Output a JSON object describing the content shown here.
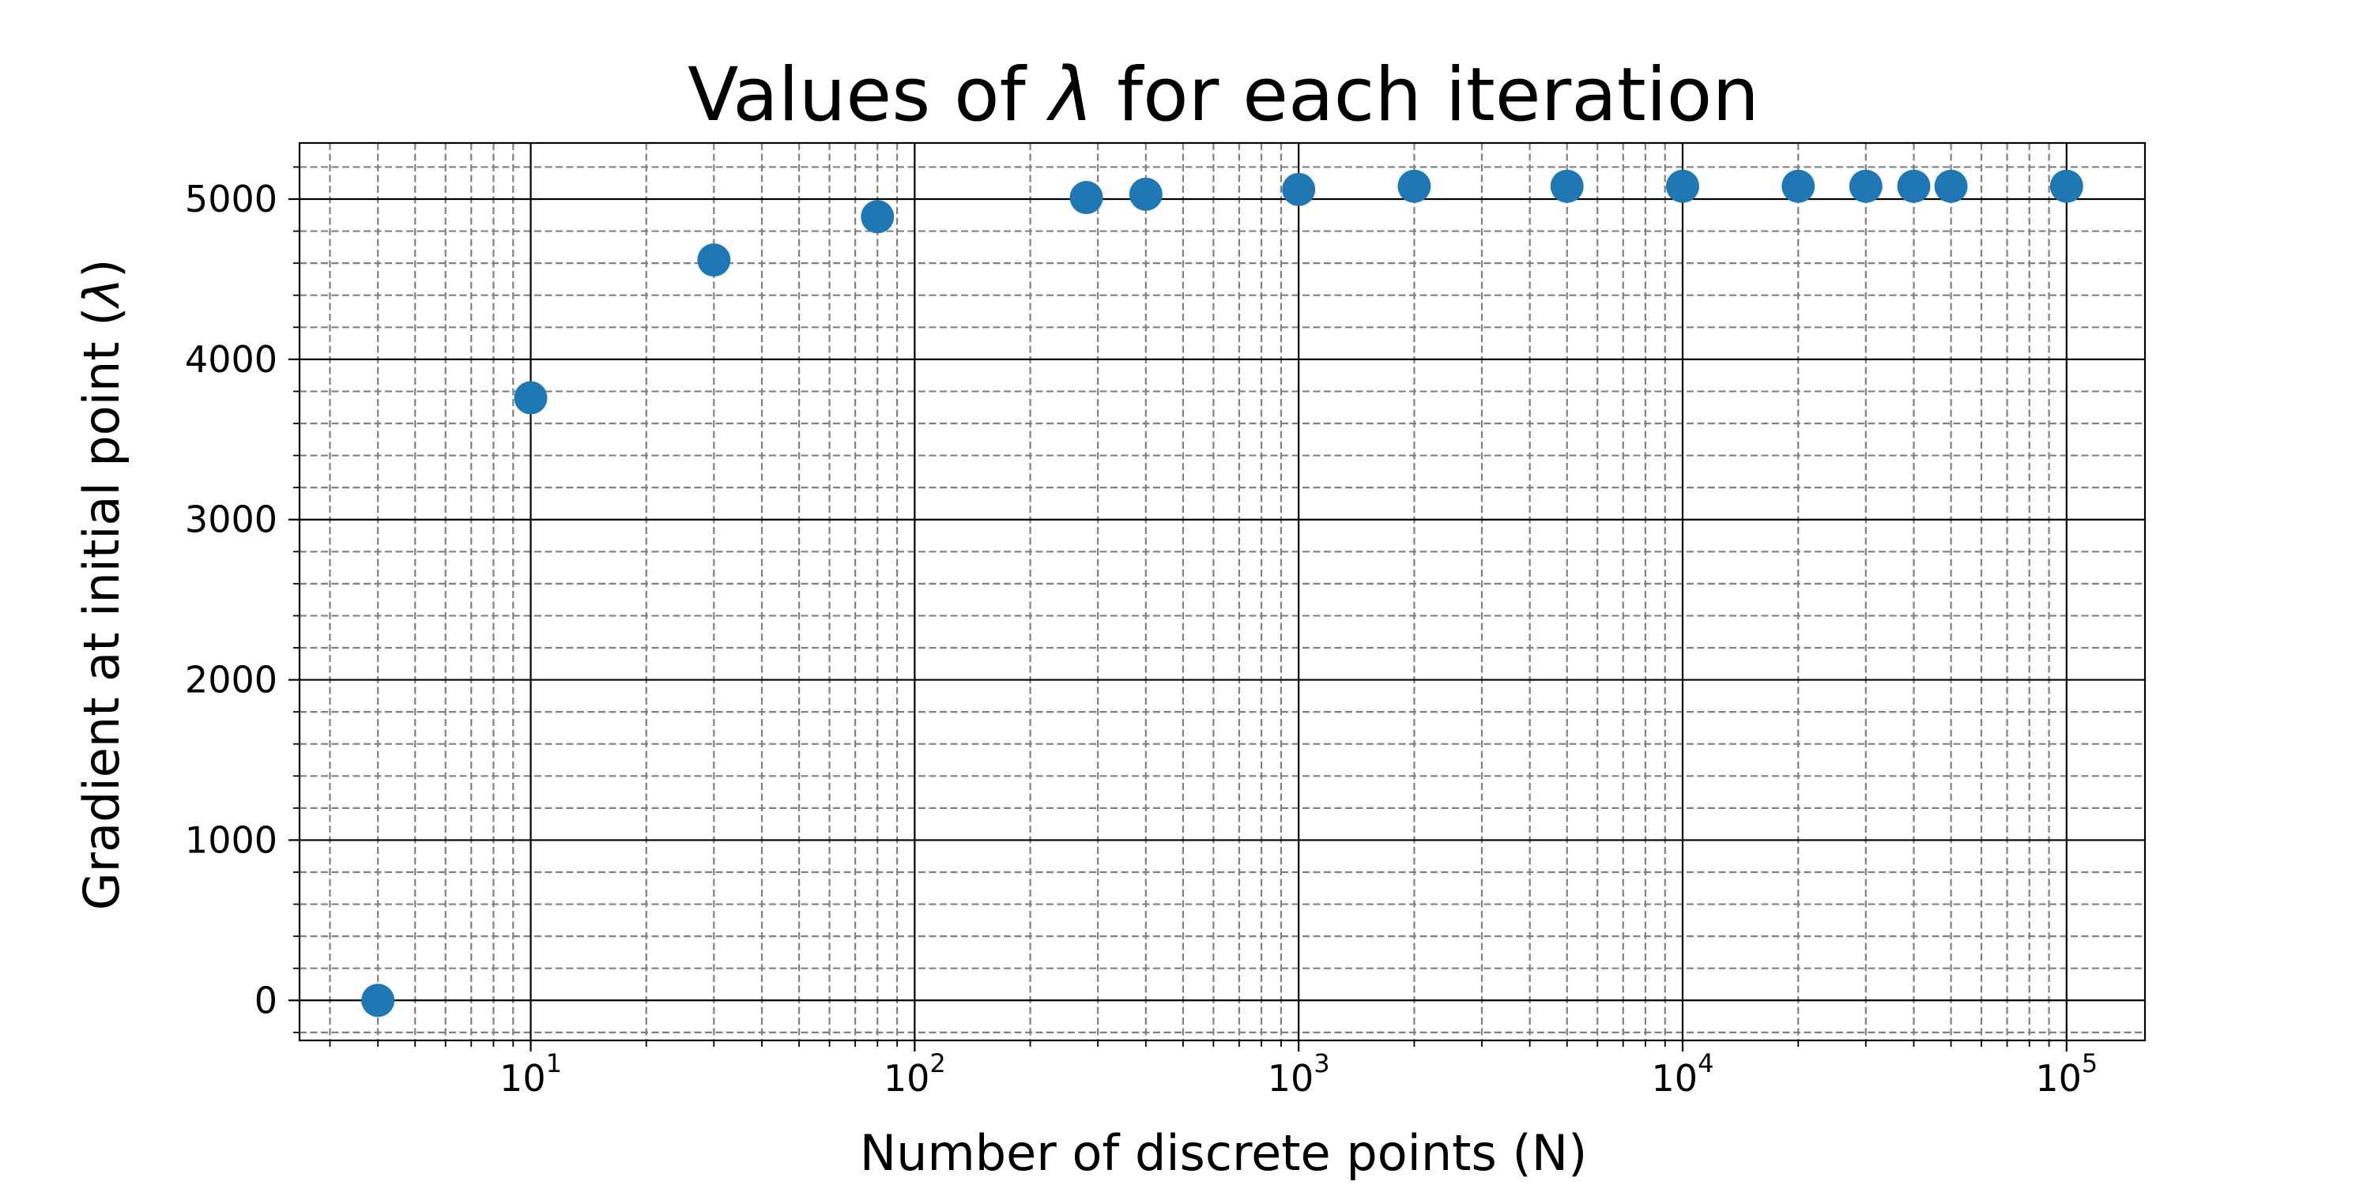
{
  "chart_data": {
    "type": "scatter",
    "title": "Values of λ for each iteration",
    "title_parts": {
      "before": "Values of ",
      "symbol": "λ",
      "after": " for each iteration"
    },
    "xlabel": "Number of discrete points (N)",
    "ylabel": "Gradient at initial point (λ)",
    "ylabel_parts": {
      "before": "Gradient at initial point (",
      "symbol": "λ",
      "after": ")"
    },
    "x_scale": "log",
    "xlim": [
      2.5,
      160000
    ],
    "ylim": [
      -250,
      5350
    ],
    "x_tick_labels": [
      {
        "value": 10,
        "base": "10",
        "exp": "1"
      },
      {
        "value": 100,
        "base": "10",
        "exp": "2"
      },
      {
        "value": 1000,
        "base": "10",
        "exp": "3"
      },
      {
        "value": 10000,
        "base": "10",
        "exp": "4"
      },
      {
        "value": 100000,
        "base": "10",
        "exp": "5"
      }
    ],
    "y_ticks": [
      0,
      1000,
      2000,
      3000,
      4000,
      5000
    ],
    "grid": true,
    "minor_grid": true,
    "marker_color": "#1f77b4",
    "series": [
      {
        "points": [
          {
            "x": 4,
            "y": 0
          },
          {
            "x": 10,
            "y": 3760
          },
          {
            "x": 30,
            "y": 4620
          },
          {
            "x": 80,
            "y": 4890
          },
          {
            "x": 280,
            "y": 5010
          },
          {
            "x": 400,
            "y": 5030
          },
          {
            "x": 1000,
            "y": 5060
          },
          {
            "x": 2000,
            "y": 5080
          },
          {
            "x": 5000,
            "y": 5080
          },
          {
            "x": 10000,
            "y": 5080
          },
          {
            "x": 20000,
            "y": 5080
          },
          {
            "x": 30000,
            "y": 5080
          },
          {
            "x": 40000,
            "y": 5080
          },
          {
            "x": 50000,
            "y": 5080
          },
          {
            "x": 100000,
            "y": 5080
          }
        ]
      }
    ]
  }
}
